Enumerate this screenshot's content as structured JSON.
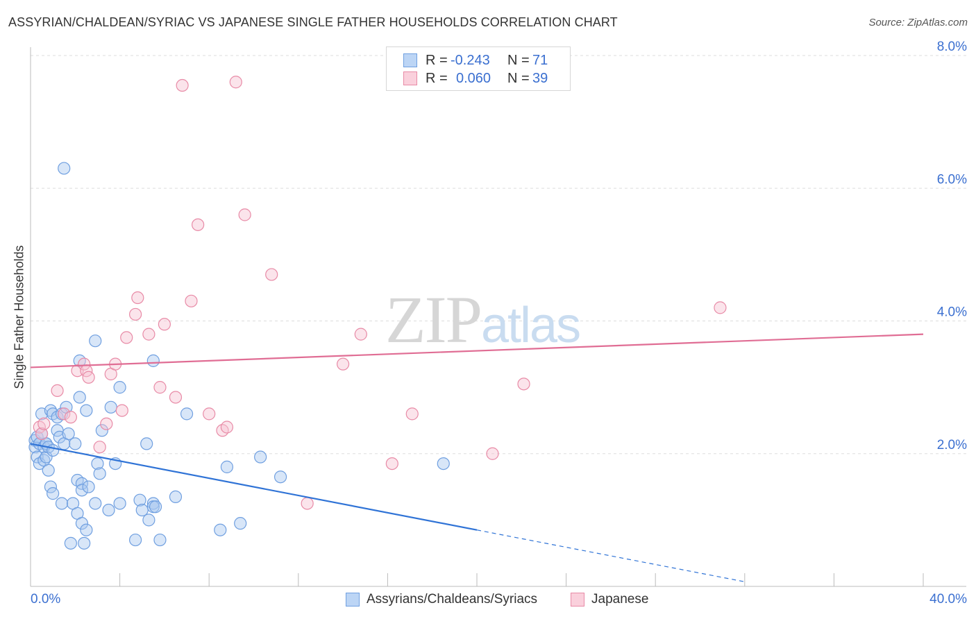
{
  "header": {
    "title": "ASSYRIAN/CHALDEAN/SYRIAC VS JAPANESE SINGLE FATHER HOUSEHOLDS CORRELATION CHART",
    "source": "Source: ZipAtlas.com"
  },
  "watermark": {
    "zip": "ZIP",
    "atlas": "atlas"
  },
  "legend": {
    "rows": [
      {
        "r_label": "R =",
        "r_value": "-0.243",
        "n_label": "N =",
        "n_value": "71",
        "color": "#a9c8f0",
        "border": "#6f9fe0"
      },
      {
        "r_label": "R =",
        "r_value": "0.060",
        "n_label": "N =",
        "n_value": "39",
        "color": "#f7c3d2",
        "border": "#e88aa6"
      }
    ],
    "bottom": [
      {
        "label": "Assyrians/Chaldeans/Syriacs",
        "color": "#bcd5f5",
        "border": "#6f9fe0"
      },
      {
        "label": "Japanese",
        "color": "#fad0dc",
        "border": "#e88aa6"
      }
    ]
  },
  "chart_data": {
    "type": "scatter",
    "title": "ASSYRIAN/CHALDEAN/SYRIAC VS JAPANESE SINGLE FATHER HOUSEHOLDS CORRELATION CHART",
    "xlabel": "",
    "ylabel": "Single Father Households",
    "xlim": [
      0,
      40
    ],
    "ylim": [
      0,
      8.0
    ],
    "x_ticks": [
      "0.0%",
      "40.0%"
    ],
    "y_ticks": [
      {
        "value": 2.0,
        "label": "2.0%"
      },
      {
        "value": 4.0,
        "label": "4.0%"
      },
      {
        "value": 6.0,
        "label": "6.0%"
      },
      {
        "value": 8.0,
        "label": "8.0%"
      }
    ],
    "grid": true,
    "legend_position": "top-center",
    "series": [
      {
        "name": "Assyrians/Chaldeans/Syriacs",
        "color": "#6f9fe0",
        "fill": "rgba(169,200,240,0.45)",
        "trend": {
          "x0": 0,
          "y0": 2.15,
          "x1": 20.0,
          "y1": 0.85,
          "dash_to_x": 32.0,
          "dash_to_y": 0.07
        },
        "points": [
          [
            0.2,
            2.1
          ],
          [
            0.2,
            2.2
          ],
          [
            0.3,
            1.95
          ],
          [
            0.3,
            2.25
          ],
          [
            0.4,
            2.15
          ],
          [
            0.4,
            1.85
          ],
          [
            0.5,
            2.3
          ],
          [
            0.5,
            2.6
          ],
          [
            0.6,
            1.9
          ],
          [
            0.6,
            2.1
          ],
          [
            0.7,
            2.15
          ],
          [
            0.7,
            1.95
          ],
          [
            0.7,
            2.15
          ],
          [
            0.8,
            2.1
          ],
          [
            0.8,
            1.75
          ],
          [
            0.9,
            1.5
          ],
          [
            0.9,
            2.65
          ],
          [
            1.0,
            1.4
          ],
          [
            1.0,
            2.6
          ],
          [
            1.0,
            2.05
          ],
          [
            1.2,
            2.55
          ],
          [
            1.2,
            2.35
          ],
          [
            1.3,
            2.25
          ],
          [
            1.4,
            1.25
          ],
          [
            1.4,
            2.6
          ],
          [
            1.5,
            6.3
          ],
          [
            1.5,
            2.15
          ],
          [
            1.6,
            2.7
          ],
          [
            1.7,
            2.3
          ],
          [
            1.8,
            0.65
          ],
          [
            1.9,
            1.25
          ],
          [
            2.0,
            2.15
          ],
          [
            2.1,
            1.1
          ],
          [
            2.1,
            1.6
          ],
          [
            2.2,
            3.4
          ],
          [
            2.2,
            2.85
          ],
          [
            2.3,
            0.95
          ],
          [
            2.3,
            1.55
          ],
          [
            2.3,
            1.45
          ],
          [
            2.4,
            0.65
          ],
          [
            2.5,
            0.85
          ],
          [
            2.5,
            2.65
          ],
          [
            2.6,
            1.5
          ],
          [
            2.9,
            1.25
          ],
          [
            2.9,
            3.7
          ],
          [
            3.0,
            1.85
          ],
          [
            3.1,
            1.7
          ],
          [
            3.2,
            2.35
          ],
          [
            3.5,
            1.15
          ],
          [
            3.6,
            2.7
          ],
          [
            3.8,
            1.85
          ],
          [
            4.0,
            3.0
          ],
          [
            4.0,
            1.25
          ],
          [
            4.7,
            0.7
          ],
          [
            4.9,
            1.3
          ],
          [
            5.0,
            1.15
          ],
          [
            5.2,
            2.15
          ],
          [
            5.3,
            1.0
          ],
          [
            5.5,
            3.4
          ],
          [
            5.5,
            1.25
          ],
          [
            5.5,
            1.2
          ],
          [
            5.6,
            1.2
          ],
          [
            5.8,
            0.7
          ],
          [
            6.5,
            1.35
          ],
          [
            7.0,
            2.6
          ],
          [
            8.5,
            0.85
          ],
          [
            8.8,
            1.8
          ],
          [
            9.4,
            0.95
          ],
          [
            10.3,
            1.95
          ],
          [
            11.2,
            1.65
          ],
          [
            18.5,
            1.85
          ]
        ]
      },
      {
        "name": "Japanese",
        "color": "#e88aa6",
        "fill": "rgba(247,195,210,0.45)",
        "trend": {
          "x0": 0,
          "y0": 3.3,
          "x1": 40.0,
          "y1": 3.8
        },
        "points": [
          [
            0.4,
            2.4
          ],
          [
            0.5,
            2.3
          ],
          [
            0.6,
            2.45
          ],
          [
            1.2,
            2.95
          ],
          [
            1.5,
            2.6
          ],
          [
            1.8,
            2.55
          ],
          [
            2.1,
            3.25
          ],
          [
            2.4,
            3.35
          ],
          [
            2.5,
            3.25
          ],
          [
            2.6,
            3.15
          ],
          [
            3.1,
            2.1
          ],
          [
            3.4,
            2.45
          ],
          [
            3.6,
            3.2
          ],
          [
            3.8,
            3.35
          ],
          [
            4.1,
            2.65
          ],
          [
            4.3,
            3.75
          ],
          [
            4.7,
            4.1
          ],
          [
            4.8,
            4.35
          ],
          [
            5.3,
            3.8
          ],
          [
            5.8,
            3.0
          ],
          [
            6.0,
            3.95
          ],
          [
            6.5,
            2.85
          ],
          [
            6.8,
            7.55
          ],
          [
            7.2,
            4.3
          ],
          [
            7.5,
            5.45
          ],
          [
            8.0,
            2.6
          ],
          [
            8.6,
            2.35
          ],
          [
            8.8,
            2.4
          ],
          [
            9.2,
            7.6
          ],
          [
            9.6,
            5.6
          ],
          [
            10.8,
            4.7
          ],
          [
            12.4,
            1.25
          ],
          [
            14.0,
            3.35
          ],
          [
            14.8,
            3.8
          ],
          [
            16.2,
            1.85
          ],
          [
            17.1,
            2.6
          ],
          [
            20.7,
            2.0
          ],
          [
            22.1,
            3.05
          ],
          [
            30.9,
            4.2
          ]
        ]
      }
    ]
  }
}
